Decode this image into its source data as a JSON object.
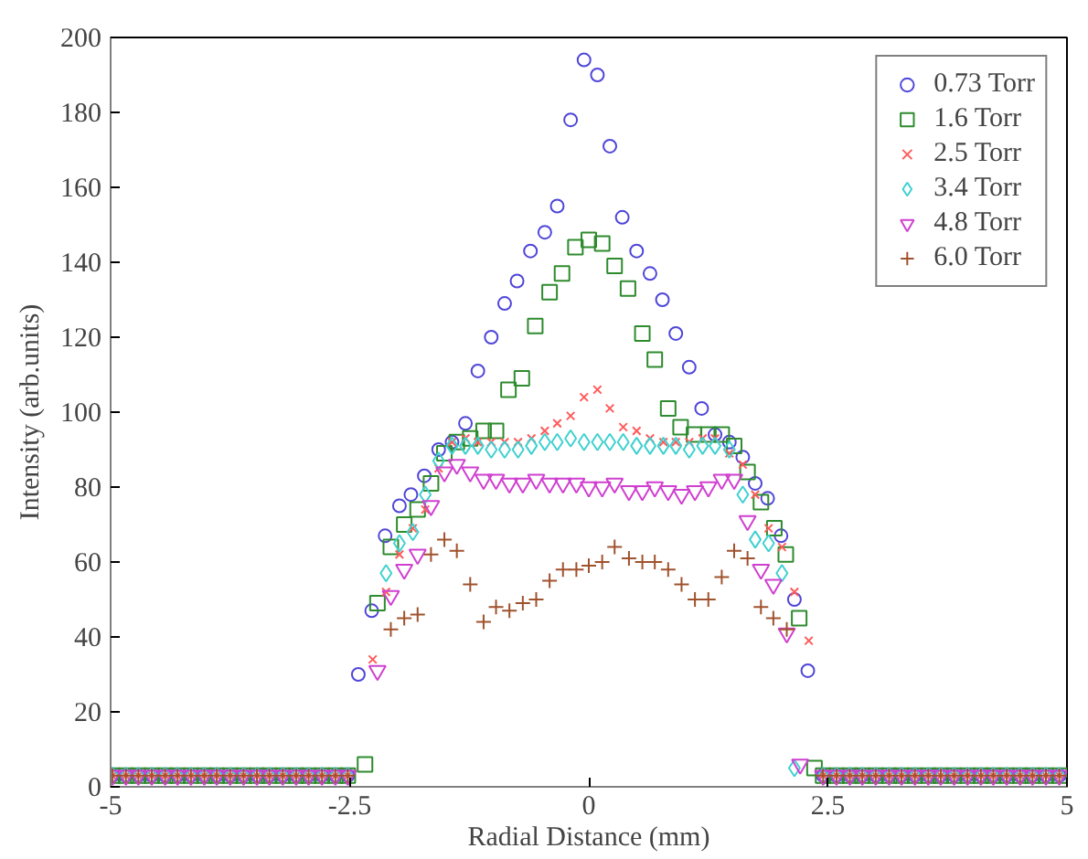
{
  "chart_data": {
    "type": "scatter",
    "xlabel": "Radial Distance (mm)",
    "ylabel": "Intensity (arb.units)",
    "xlim": [
      -5,
      5
    ],
    "ylim": [
      0,
      200
    ],
    "xticks": [
      -5,
      -2.5,
      0,
      2.5,
      5
    ],
    "yticks": [
      0,
      20,
      40,
      60,
      80,
      100,
      120,
      140,
      160,
      180,
      200
    ],
    "grid": false,
    "legend": "top right",
    "series": [
      {
        "name": "0.73 Torr",
        "color": "#4f46d8",
        "marker": "circle",
        "x": [
          -4.98,
          -4.84,
          -4.71,
          -4.57,
          -4.43,
          -4.3,
          -4.16,
          -4.02,
          -3.89,
          -3.75,
          -3.61,
          -3.47,
          -3.34,
          -3.2,
          -3.06,
          -2.93,
          -2.79,
          -2.65,
          -2.52,
          -2.41,
          -2.27,
          -2.13,
          -1.98,
          -1.86,
          -1.72,
          -1.57,
          -1.43,
          -1.29,
          -1.16,
          -1.02,
          -0.88,
          -0.75,
          -0.61,
          -0.46,
          -0.33,
          -0.19,
          -0.05,
          0.09,
          0.22,
          0.35,
          0.5,
          0.64,
          0.77,
          0.91,
          1.05,
          1.18,
          1.32,
          1.47,
          1.61,
          1.74,
          1.87,
          2.01,
          2.15,
          2.29,
          2.45,
          2.59,
          2.73,
          2.86,
          3.0,
          3.14,
          3.27,
          3.41,
          3.55,
          3.68,
          3.82,
          3.96,
          4.1,
          4.23,
          4.37,
          4.51,
          4.64,
          4.78,
          4.92
        ],
        "values": [
          3,
          3,
          3,
          3,
          3,
          3,
          3,
          3,
          3,
          3,
          3,
          3,
          3,
          3,
          3,
          3,
          3,
          3,
          3,
          30,
          47,
          67,
          75,
          78,
          83,
          90,
          92,
          97,
          111,
          120,
          129,
          135,
          143,
          148,
          155,
          178,
          194,
          190,
          171,
          152,
          143,
          137,
          130,
          121,
          112,
          101,
          94,
          92,
          88,
          81,
          77,
          67,
          50,
          31,
          3,
          3,
          3,
          3,
          3,
          3,
          3,
          3,
          3,
          3,
          3,
          3,
          3,
          3,
          3,
          3,
          3,
          3,
          3
        ]
      },
      {
        "name": "1.6 Torr",
        "color": "#2e8b2e",
        "marker": "square",
        "x": [
          -4.98,
          -4.84,
          -4.71,
          -4.57,
          -4.43,
          -4.3,
          -4.16,
          -4.02,
          -3.89,
          -3.75,
          -3.61,
          -3.47,
          -3.34,
          -3.2,
          -3.06,
          -2.93,
          -2.79,
          -2.65,
          -2.52,
          -2.34,
          -2.21,
          -2.07,
          -1.93,
          -1.79,
          -1.65,
          -1.51,
          -1.38,
          -1.24,
          -1.1,
          -0.97,
          -0.84,
          -0.7,
          -0.56,
          -0.41,
          -0.28,
          -0.14,
          0.0,
          0.14,
          0.27,
          0.41,
          0.56,
          0.69,
          0.83,
          0.96,
          1.1,
          1.25,
          1.39,
          1.52,
          1.66,
          1.8,
          1.94,
          2.06,
          2.2,
          2.36,
          2.45,
          2.59,
          2.73,
          2.86,
          3.0,
          3.14,
          3.27,
          3.41,
          3.55,
          3.68,
          3.82,
          3.96,
          4.1,
          4.23,
          4.37,
          4.51,
          4.64,
          4.78,
          4.92
        ],
        "values": [
          3,
          3,
          3,
          3,
          3,
          3,
          3,
          3,
          3,
          3,
          3,
          3,
          3,
          3,
          3,
          3,
          3,
          3,
          3,
          6,
          49,
          64,
          70,
          74,
          81,
          89,
          92,
          93,
          95,
          95,
          106,
          109,
          123,
          132,
          137,
          144,
          146,
          145,
          139,
          133,
          121,
          114,
          101,
          96,
          94,
          94,
          94,
          91,
          84,
          76,
          69,
          62,
          45,
          5,
          3,
          3,
          3,
          3,
          3,
          3,
          3,
          3,
          3,
          3,
          3,
          3,
          3,
          3,
          3,
          3,
          3,
          3,
          3
        ]
      },
      {
        "name": "2.5 Torr",
        "color": "#ff5a5a",
        "marker": "x",
        "x": [
          -4.98,
          -4.84,
          -4.71,
          -4.57,
          -4.43,
          -4.3,
          -4.16,
          -4.02,
          -3.89,
          -3.75,
          -3.61,
          -3.47,
          -3.34,
          -3.2,
          -3.06,
          -2.93,
          -2.79,
          -2.65,
          -2.52,
          -2.26,
          -2.12,
          -1.98,
          -1.84,
          -1.71,
          -1.57,
          -1.43,
          -1.29,
          -1.16,
          -1.02,
          -0.88,
          -0.74,
          -0.6,
          -0.46,
          -0.33,
          -0.19,
          -0.05,
          0.09,
          0.22,
          0.36,
          0.5,
          0.64,
          0.78,
          0.91,
          1.05,
          1.19,
          1.32,
          1.47,
          1.61,
          1.74,
          1.88,
          2.02,
          2.15,
          2.3,
          2.45,
          2.59,
          2.73,
          2.86,
          3.0,
          3.14,
          3.27,
          3.41,
          3.55,
          3.68,
          3.82,
          3.96,
          4.1,
          4.23,
          4.37,
          4.51,
          4.64,
          4.78,
          4.92
        ],
        "values": [
          3,
          3,
          3,
          3,
          3,
          3,
          3,
          3,
          3,
          3,
          3,
          3,
          3,
          3,
          3,
          3,
          3,
          3,
          3,
          34,
          52,
          62,
          69,
          74,
          85,
          92,
          93,
          92,
          92,
          92,
          92,
          93,
          95,
          97,
          99,
          104,
          106,
          101,
          96,
          95,
          93,
          92,
          92,
          92,
          93,
          93,
          89,
          86,
          78,
          69,
          64,
          52,
          39,
          3,
          3,
          3,
          3,
          3,
          3,
          3,
          3,
          3,
          3,
          3,
          3,
          3,
          3,
          3,
          3,
          3,
          3,
          3
        ]
      },
      {
        "name": "3.4 Torr",
        "color": "#40d0d0",
        "marker": "diamond",
        "x": [
          -4.98,
          -4.84,
          -4.71,
          -4.57,
          -4.43,
          -4.3,
          -4.16,
          -4.02,
          -3.89,
          -3.75,
          -3.61,
          -3.47,
          -3.34,
          -3.2,
          -3.06,
          -2.93,
          -2.79,
          -2.65,
          -2.52,
          -2.12,
          -1.98,
          -1.84,
          -1.71,
          -1.57,
          -1.43,
          -1.29,
          -1.16,
          -1.02,
          -0.88,
          -0.74,
          -0.6,
          -0.46,
          -0.33,
          -0.19,
          -0.05,
          0.09,
          0.22,
          0.36,
          0.5,
          0.64,
          0.78,
          0.91,
          1.05,
          1.19,
          1.32,
          1.47,
          1.61,
          1.74,
          1.88,
          2.02,
          2.15,
          2.45,
          2.59,
          2.73,
          2.86,
          3.0,
          3.14,
          3.27,
          3.41,
          3.55,
          3.68,
          3.82,
          3.96,
          4.1,
          4.23,
          4.37,
          4.51,
          4.64,
          4.78,
          4.92
        ],
        "values": [
          3,
          3,
          3,
          3,
          3,
          3,
          3,
          3,
          3,
          3,
          3,
          3,
          3,
          3,
          3,
          3,
          3,
          3,
          3,
          57,
          65,
          68,
          78,
          87,
          91,
          91,
          91,
          90,
          90,
          90,
          91,
          92,
          92,
          93,
          92,
          92,
          92,
          92,
          91,
          91,
          91,
          91,
          90,
          91,
          91,
          90,
          78,
          66,
          65,
          57,
          5,
          3,
          3,
          3,
          3,
          3,
          3,
          3,
          3,
          3,
          3,
          3,
          3,
          3,
          3,
          3,
          3,
          3,
          3,
          3
        ]
      },
      {
        "name": "4.8 Torr",
        "color": "#d040d0",
        "marker": "triangle",
        "x": [
          -4.98,
          -4.84,
          -4.71,
          -4.57,
          -4.43,
          -4.3,
          -4.16,
          -4.02,
          -3.89,
          -3.75,
          -3.61,
          -3.47,
          -3.34,
          -3.2,
          -3.06,
          -2.93,
          -2.79,
          -2.65,
          -2.52,
          -2.21,
          -2.07,
          -1.93,
          -1.79,
          -1.65,
          -1.51,
          -1.38,
          -1.24,
          -1.1,
          -0.97,
          -0.83,
          -0.69,
          -0.55,
          -0.41,
          -0.27,
          -0.13,
          0.0,
          0.14,
          0.27,
          0.42,
          0.56,
          0.69,
          0.83,
          0.97,
          1.11,
          1.25,
          1.39,
          1.52,
          1.66,
          1.8,
          1.93,
          2.07,
          2.21,
          2.45,
          2.59,
          2.73,
          2.86,
          3.0,
          3.14,
          3.27,
          3.41,
          3.55,
          3.68,
          3.82,
          3.96,
          4.1,
          4.23,
          4.37,
          4.51,
          4.64,
          4.78,
          4.92
        ],
        "values": [
          3,
          3,
          3,
          3,
          3,
          3,
          3,
          3,
          3,
          3,
          3,
          3,
          3,
          3,
          3,
          3,
          3,
          3,
          3,
          31,
          51,
          58,
          62,
          75,
          84,
          86,
          84,
          82,
          82,
          81,
          81,
          82,
          81,
          81,
          81,
          80,
          80,
          81,
          79,
          79,
          80,
          79,
          78,
          79,
          80,
          82,
          82,
          71,
          58,
          54,
          41,
          6,
          3,
          3,
          3,
          3,
          3,
          3,
          3,
          3,
          3,
          3,
          3,
          3,
          3,
          3,
          3,
          3,
          3,
          3,
          3
        ]
      },
      {
        "name": "6.0 Torr",
        "color": "#a0522d",
        "marker": "cross",
        "x": [
          -4.98,
          -4.84,
          -4.71,
          -4.57,
          -4.43,
          -4.3,
          -4.16,
          -4.02,
          -3.89,
          -3.75,
          -3.61,
          -3.47,
          -3.34,
          -3.2,
          -3.06,
          -2.93,
          -2.79,
          -2.65,
          -2.52,
          -2.07,
          -1.93,
          -1.79,
          -1.65,
          -1.51,
          -1.38,
          -1.24,
          -1.1,
          -0.97,
          -0.83,
          -0.69,
          -0.55,
          -0.41,
          -0.27,
          -0.13,
          0.0,
          0.14,
          0.27,
          0.42,
          0.56,
          0.69,
          0.83,
          0.97,
          1.11,
          1.25,
          1.39,
          1.52,
          1.66,
          1.8,
          1.93,
          2.07,
          2.45,
          2.59,
          2.73,
          2.86,
          3.0,
          3.14,
          3.27,
          3.41,
          3.55,
          3.68,
          3.82,
          3.96,
          4.1,
          4.23,
          4.37,
          4.51,
          4.64,
          4.78,
          4.92
        ],
        "values": [
          3,
          3,
          3,
          3,
          3,
          3,
          3,
          3,
          3,
          3,
          3,
          3,
          3,
          3,
          3,
          3,
          3,
          3,
          3,
          42,
          45,
          46,
          62,
          66,
          63,
          54,
          44,
          48,
          47,
          49,
          50,
          55,
          58,
          58,
          59,
          60,
          64,
          61,
          60,
          60,
          58,
          54,
          50,
          50,
          56,
          63,
          61,
          48,
          45,
          42,
          3,
          3,
          3,
          3,
          3,
          3,
          3,
          3,
          3,
          3,
          3,
          3,
          3,
          3,
          3,
          3,
          3,
          3,
          3
        ]
      }
    ]
  }
}
